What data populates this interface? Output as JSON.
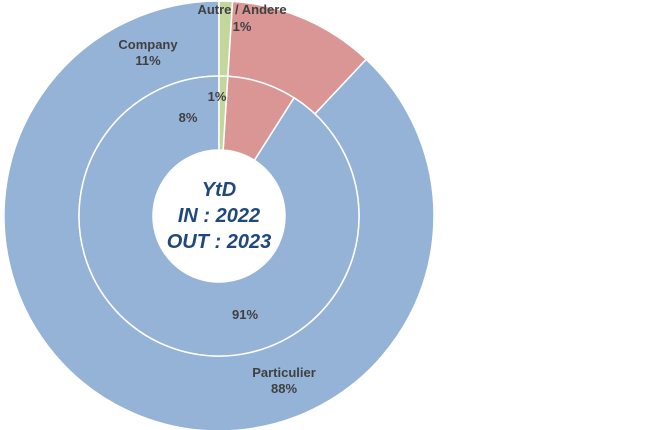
{
  "chart_data": {
    "type": "pie",
    "variant": "concentric-doughnut",
    "center_text": [
      "YtD",
      "IN : 2022",
      "OUT : 2023"
    ],
    "categories": [
      "Particulier",
      "Company",
      "Autre / Andere"
    ],
    "series": [
      {
        "ring": "outer",
        "values": [
          88,
          11,
          1
        ],
        "value_labels": [
          "88%",
          "11%",
          "1%"
        ]
      },
      {
        "ring": "inner",
        "values": [
          91,
          8,
          1
        ],
        "value_labels": [
          "91%",
          "8%",
          "1%"
        ]
      }
    ],
    "colors": {
      "Particulier": "#95b3d7",
      "Company": "#d99694",
      "Autre / Andere": "#c3d69b",
      "center_text": "#1f497d",
      "labels": "#404040"
    },
    "legend": "none"
  }
}
